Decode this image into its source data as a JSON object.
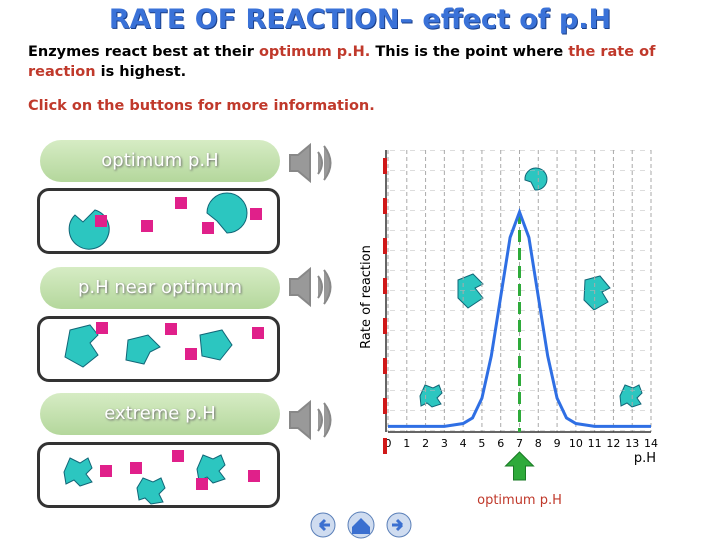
{
  "header": {
    "title": "RATE OF REACTION– effect of p.H"
  },
  "intro": {
    "parts": [
      {
        "text": "Enzymes react best at their ",
        "color": "#000000"
      },
      {
        "text": "optimum p.H.",
        "color": "#c0392b"
      },
      {
        "text": " This is the point where ",
        "color": "#000000"
      },
      {
        "text": "the rate of reaction",
        "color": "#c0392b"
      },
      {
        "text": " is highest.",
        "color": "#000000"
      }
    ]
  },
  "instruction": "Click on the buttons for more information.",
  "buttons": [
    "optimum p.H",
    "p.H near optimum",
    "extreme p.H"
  ],
  "chart_data": {
    "type": "line",
    "y_label": "Rate of reaction",
    "x_label": "p.H",
    "annotation": "optimum p.H",
    "x": [
      0,
      1,
      2,
      3,
      4,
      4.5,
      5,
      5.5,
      6,
      6.5,
      7,
      7.5,
      8,
      8.5,
      9,
      9.5,
      10,
      11,
      12,
      13,
      14
    ],
    "values": [
      2,
      2,
      2,
      2,
      3,
      5,
      12,
      27,
      48,
      69,
      78,
      69,
      48,
      27,
      12,
      5,
      3,
      2,
      2,
      2,
      2
    ],
    "color": "#2f6fe4",
    "marker_x": 7,
    "marker_color": "#2eaa3a",
    "xlim": [
      0,
      14
    ],
    "ylim": [
      0,
      100
    ],
    "xticks": [
      0,
      1,
      2,
      3,
      4,
      5,
      6,
      7,
      8,
      9,
      10,
      11,
      12,
      13,
      14
    ],
    "grid": true
  }
}
